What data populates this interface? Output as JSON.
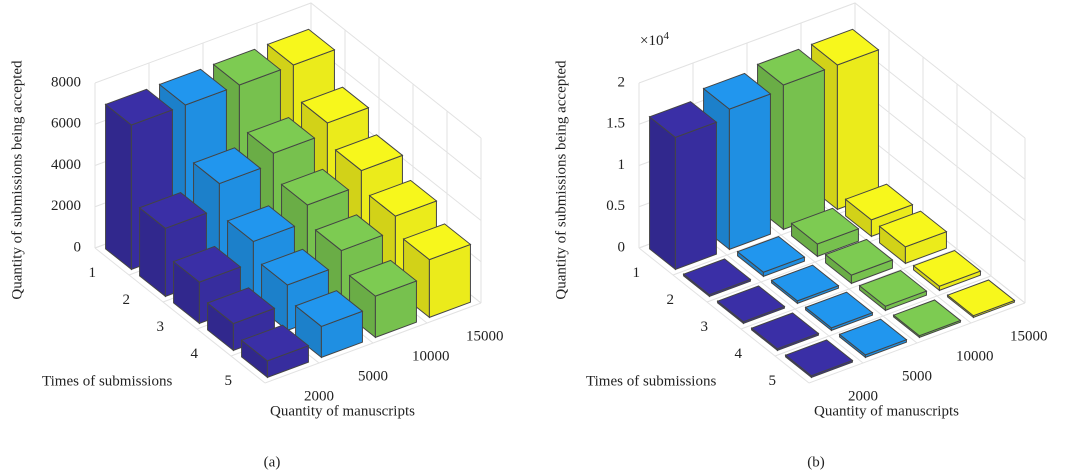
{
  "chart_data": [
    {
      "type": "bar3d",
      "caption": "(a)",
      "z_label": "Quantity of submissions being accepted",
      "x_label": "Times of submissions",
      "series_label": "Quantity of manuscripts",
      "categories": [
        "1",
        "2",
        "3",
        "4",
        "5"
      ],
      "zlim": [
        0,
        8000
      ],
      "zticks": [
        0,
        2000,
        4000,
        6000,
        8000
      ],
      "grid": true,
      "series": [
        {
          "name": "2000",
          "color": "#3a2fa6",
          "values": [
            7000,
            3300,
            2000,
            1300,
            800
          ]
        },
        {
          "name": "5000",
          "color": "#2196ee",
          "values": [
            7000,
            4500,
            3000,
            2200,
            1500
          ]
        },
        {
          "name": "10000",
          "color": "#7dcb52",
          "values": [
            7000,
            5000,
            3800,
            2900,
            2000
          ]
        },
        {
          "name": "15000",
          "color": "#f7f71c",
          "values": [
            7000,
            5500,
            4500,
            3600,
            2800
          ]
        }
      ]
    },
    {
      "type": "bar3d",
      "caption": "(b)",
      "z_label": "Quantity of submissions being accepted",
      "x_label": "Times of submissions",
      "series_label": "Quantity of manuscripts",
      "z_multiplier_base": "×10",
      "z_multiplier_exponent": "4",
      "categories": [
        "1",
        "2",
        "3",
        "4",
        "5"
      ],
      "zlim": [
        0,
        2
      ],
      "zticks": [
        0,
        0.5,
        1,
        1.5,
        2
      ],
      "grid": true,
      "series": [
        {
          "name": "2000",
          "color": "#3a2fa6",
          "values": [
            1.6,
            0.02,
            0.02,
            0.02,
            0.02
          ]
        },
        {
          "name": "5000",
          "color": "#2196ee",
          "values": [
            1.7,
            0.05,
            0.03,
            0.03,
            0.03
          ]
        },
        {
          "name": "10000",
          "color": "#7dcb52",
          "values": [
            1.75,
            0.15,
            0.1,
            0.05,
            0.02
          ]
        },
        {
          "name": "15000",
          "color": "#f7f71c",
          "values": [
            1.75,
            0.2,
            0.2,
            0.05,
            0.02
          ]
        }
      ]
    }
  ]
}
